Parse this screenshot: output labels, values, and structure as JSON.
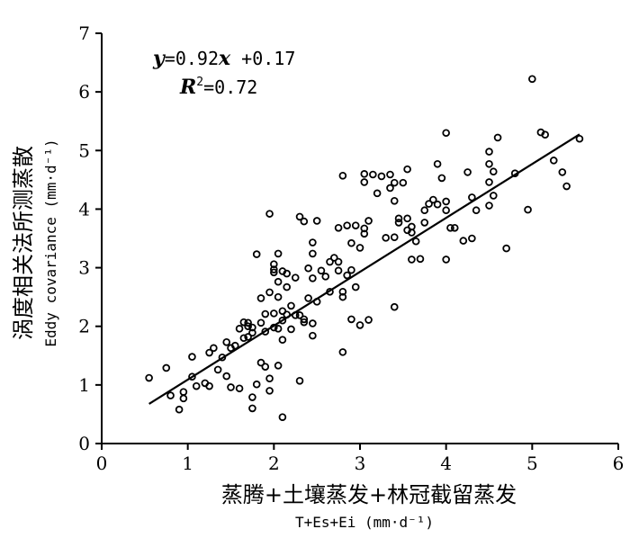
{
  "chart_data": {
    "type": "scatter",
    "xlabel": "蒸腾+土壤蒸发+林冠截留蒸发",
    "xlabel_sub": "T+Es+Ei (mm·d⁻¹)",
    "ylabel": "涡度相关法所测蒸散",
    "ylabel_sub": "Eddy covariance (mm·d⁻¹)",
    "xlim": [
      0,
      6
    ],
    "ylim": [
      0,
      7
    ],
    "xticks": [
      "0",
      "1",
      "2",
      "3",
      "4",
      "5",
      "6"
    ],
    "yticks": [
      "0",
      "1",
      "2",
      "3",
      "4",
      "5",
      "6",
      "7"
    ],
    "grid": false,
    "equation": {
      "line1_var1": "y",
      "line1_mid": "=0.92",
      "line1_var2": "x",
      "line1_end": " +0.17",
      "line2_var": "R",
      "line2_sup": "2",
      "line2_end": "=0.72"
    },
    "fit_line": {
      "slope": 0.92,
      "intercept": 0.17,
      "x_range": [
        0.55,
        5.55
      ]
    },
    "points": [
      [
        0.55,
        1.12
      ],
      [
        0.75,
        1.29
      ],
      [
        0.8,
        0.82
      ],
      [
        0.9,
        0.58
      ],
      [
        0.95,
        0.77
      ],
      [
        0.95,
        0.88
      ],
      [
        1.05,
        1.14
      ],
      [
        1.05,
        1.48
      ],
      [
        1.1,
        0.98
      ],
      [
        1.2,
        1.03
      ],
      [
        1.25,
        0.98
      ],
      [
        1.25,
        1.55
      ],
      [
        1.3,
        1.63
      ],
      [
        1.35,
        1.26
      ],
      [
        1.4,
        1.47
      ],
      [
        1.45,
        1.73
      ],
      [
        1.45,
        1.15
      ],
      [
        1.5,
        1.63
      ],
      [
        1.5,
        0.96
      ],
      [
        1.55,
        1.67
      ],
      [
        1.6,
        0.94
      ],
      [
        1.6,
        1.96
      ],
      [
        1.65,
        2.07
      ],
      [
        1.65,
        1.8
      ],
      [
        1.7,
        1.82
      ],
      [
        1.7,
        2.0
      ],
      [
        1.7,
        2.06
      ],
      [
        1.75,
        1.89
      ],
      [
        1.75,
        1.98
      ],
      [
        1.75,
        0.79
      ],
      [
        1.75,
        0.6
      ],
      [
        1.8,
        1.01
      ],
      [
        1.8,
        3.23
      ],
      [
        1.85,
        2.06
      ],
      [
        1.85,
        1.38
      ],
      [
        1.85,
        2.48
      ],
      [
        1.9,
        1.31
      ],
      [
        1.9,
        2.21
      ],
      [
        1.9,
        1.91
      ],
      [
        1.95,
        0.9
      ],
      [
        1.95,
        1.11
      ],
      [
        1.95,
        3.92
      ],
      [
        1.95,
        2.58
      ],
      [
        2.0,
        1.98
      ],
      [
        2.0,
        2.22
      ],
      [
        2.0,
        2.92
      ],
      [
        2.0,
        2.97
      ],
      [
        2.0,
        3.06
      ],
      [
        2.05,
        1.96
      ],
      [
        2.05,
        2.5
      ],
      [
        2.05,
        2.76
      ],
      [
        2.05,
        3.24
      ],
      [
        2.05,
        1.33
      ],
      [
        2.1,
        2.1
      ],
      [
        2.1,
        2.26
      ],
      [
        2.1,
        2.94
      ],
      [
        2.1,
        1.77
      ],
      [
        2.1,
        0.45
      ],
      [
        2.15,
        2.2
      ],
      [
        2.15,
        2.67
      ],
      [
        2.15,
        2.9
      ],
      [
        2.2,
        1.95
      ],
      [
        2.2,
        2.35
      ],
      [
        2.25,
        2.19
      ],
      [
        2.25,
        2.83
      ],
      [
        2.3,
        3.87
      ],
      [
        2.3,
        2.19
      ],
      [
        2.3,
        1.07
      ],
      [
        2.35,
        3.79
      ],
      [
        2.35,
        2.12
      ],
      [
        2.35,
        2.07
      ],
      [
        2.4,
        2.48
      ],
      [
        2.4,
        2.99
      ],
      [
        2.45,
        2.82
      ],
      [
        2.45,
        2.05
      ],
      [
        2.45,
        3.43
      ],
      [
        2.45,
        3.24
      ],
      [
        2.45,
        1.84
      ],
      [
        2.5,
        3.8
      ],
      [
        2.5,
        2.42
      ],
      [
        2.55,
        2.95
      ],
      [
        2.6,
        2.85
      ],
      [
        2.65,
        3.1
      ],
      [
        2.65,
        2.59
      ],
      [
        2.7,
        3.17
      ],
      [
        2.75,
        2.95
      ],
      [
        2.75,
        3.1
      ],
      [
        2.75,
        3.68
      ],
      [
        2.8,
        4.57
      ],
      [
        2.8,
        2.5
      ],
      [
        2.8,
        2.59
      ],
      [
        2.8,
        1.56
      ],
      [
        2.85,
        3.72
      ],
      [
        2.85,
        2.87
      ],
      [
        2.9,
        3.42
      ],
      [
        2.9,
        2.12
      ],
      [
        2.9,
        2.96
      ],
      [
        2.95,
        2.67
      ],
      [
        2.95,
        3.72
      ],
      [
        3.0,
        2.02
      ],
      [
        3.0,
        3.34
      ],
      [
        3.05,
        3.58
      ],
      [
        3.05,
        3.67
      ],
      [
        3.05,
        4.46
      ],
      [
        3.05,
        4.6
      ],
      [
        3.1,
        3.8
      ],
      [
        3.1,
        2.11
      ],
      [
        3.15,
        4.59
      ],
      [
        3.2,
        4.27
      ],
      [
        3.25,
        4.56
      ],
      [
        3.3,
        3.51
      ],
      [
        3.35,
        4.36
      ],
      [
        3.35,
        4.59
      ],
      [
        3.4,
        2.33
      ],
      [
        3.4,
        4.45
      ],
      [
        3.4,
        3.52
      ],
      [
        3.4,
        4.14
      ],
      [
        3.45,
        3.77
      ],
      [
        3.45,
        3.84
      ],
      [
        3.5,
        4.45
      ],
      [
        3.55,
        3.84
      ],
      [
        3.55,
        3.64
      ],
      [
        3.55,
        4.68
      ],
      [
        3.6,
        3.6
      ],
      [
        3.6,
        3.7
      ],
      [
        3.6,
        3.14
      ],
      [
        3.65,
        3.45
      ],
      [
        3.7,
        3.15
      ],
      [
        3.75,
        3.98
      ],
      [
        3.75,
        3.77
      ],
      [
        3.8,
        4.09
      ],
      [
        3.85,
        4.16
      ],
      [
        3.9,
        4.08
      ],
      [
        3.9,
        4.77
      ],
      [
        3.95,
        4.53
      ],
      [
        4.0,
        3.98
      ],
      [
        4.0,
        4.13
      ],
      [
        4.0,
        3.14
      ],
      [
        4.0,
        5.3
      ],
      [
        4.05,
        3.68
      ],
      [
        4.1,
        3.68
      ],
      [
        4.2,
        3.46
      ],
      [
        4.25,
        4.63
      ],
      [
        4.3,
        4.2
      ],
      [
        4.3,
        3.5
      ],
      [
        4.35,
        3.98
      ],
      [
        4.5,
        4.98
      ],
      [
        4.5,
        4.77
      ],
      [
        4.5,
        4.46
      ],
      [
        4.5,
        4.06
      ],
      [
        4.55,
        4.64
      ],
      [
        4.55,
        4.23
      ],
      [
        4.6,
        5.22
      ],
      [
        4.7,
        3.33
      ],
      [
        4.8,
        4.61
      ],
      [
        4.95,
        3.99
      ],
      [
        5.0,
        6.22
      ],
      [
        5.1,
        5.31
      ],
      [
        5.15,
        5.27
      ],
      [
        5.25,
        4.83
      ],
      [
        5.35,
        4.63
      ],
      [
        5.4,
        4.39
      ],
      [
        5.55,
        5.2
      ]
    ]
  }
}
